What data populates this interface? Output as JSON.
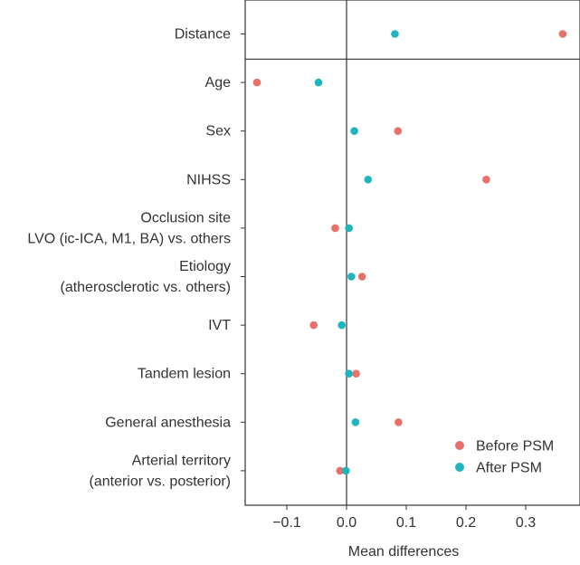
{
  "chart_data": {
    "type": "scatter",
    "xlabel": "Mean differences",
    "xlim": [
      -0.17,
      0.37
    ],
    "xticks": [
      -0.1,
      0.0,
      0.1,
      0.2,
      0.3
    ],
    "xtick_labels": [
      "−0.1",
      "0.0",
      "0.1",
      "0.2",
      "0.3"
    ],
    "categories": [
      {
        "lines": [
          "Distance"
        ]
      },
      {
        "lines": [
          "Age"
        ]
      },
      {
        "lines": [
          "Sex"
        ]
      },
      {
        "lines": [
          "NIHSS"
        ]
      },
      {
        "lines": [
          "Occlusion site",
          "LVO (ic-ICA, M1, BA) vs. others"
        ]
      },
      {
        "lines": [
          "Etiology",
          "(atherosclerotic vs. others)"
        ]
      },
      {
        "lines": [
          "IVT"
        ]
      },
      {
        "lines": [
          "Tandem lesion"
        ]
      },
      {
        "lines": [
          "General anesthesia"
        ]
      },
      {
        "lines": [
          "Arterial territory",
          "(anterior vs. posterior)"
        ]
      }
    ],
    "series": [
      {
        "name": "Before PSM",
        "color": "#e8706b",
        "values": [
          0.362,
          -0.15,
          0.086,
          0.234,
          -0.019,
          0.026,
          -0.055,
          0.016,
          0.087,
          -0.011
        ]
      },
      {
        "name": "After PSM",
        "color": "#1fb5bf",
        "values": [
          0.081,
          -0.047,
          0.013,
          0.036,
          0.004,
          0.008,
          -0.008,
          0.004,
          0.015,
          -0.001
        ]
      }
    ],
    "vline_at": 0.0,
    "separator_after_category": 0,
    "legend": "bottom-right",
    "grid": false
  }
}
